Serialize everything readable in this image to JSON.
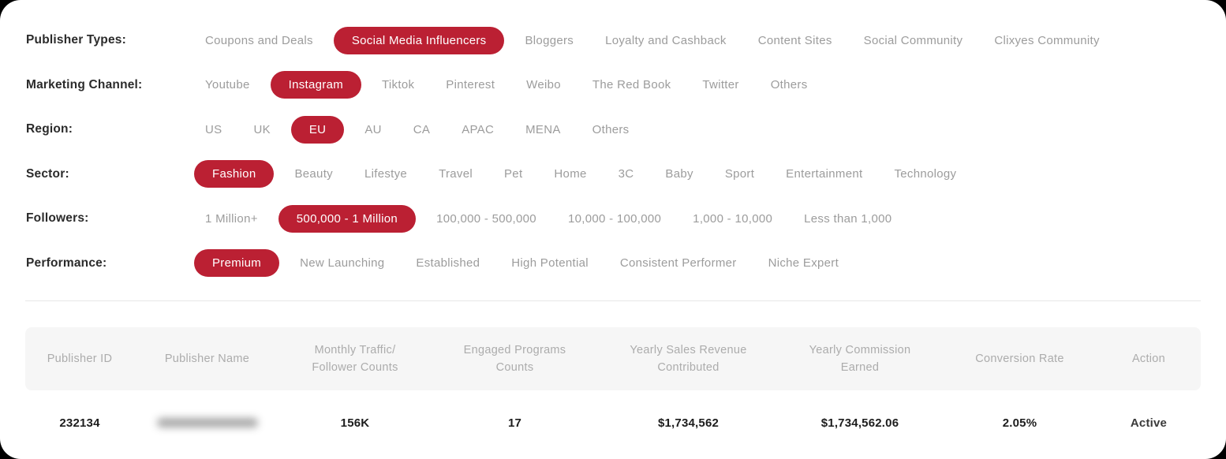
{
  "theme": {
    "accent_red": "#bb2033",
    "option_text": "#9c9c9c",
    "label_text": "#2b2b2b",
    "header_bg": "#f6f6f6"
  },
  "filters": [
    {
      "label": "Publisher Types:",
      "options": [
        {
          "label": "Coupons and Deals",
          "selected": false
        },
        {
          "label": "Social Media Influencers",
          "selected": true
        },
        {
          "label": "Bloggers",
          "selected": false
        },
        {
          "label": "Loyalty and Cashback",
          "selected": false
        },
        {
          "label": "Content Sites",
          "selected": false
        },
        {
          "label": "Social Community",
          "selected": false
        },
        {
          "label": "Clixyes Community",
          "selected": false
        }
      ]
    },
    {
      "label": "Marketing Channel:",
      "options": [
        {
          "label": "Youtube",
          "selected": false
        },
        {
          "label": "Instagram",
          "selected": true
        },
        {
          "label": "Tiktok",
          "selected": false
        },
        {
          "label": "Pinterest",
          "selected": false
        },
        {
          "label": "Weibo",
          "selected": false
        },
        {
          "label": "The Red Book",
          "selected": false
        },
        {
          "label": "Twitter",
          "selected": false
        },
        {
          "label": "Others",
          "selected": false
        }
      ]
    },
    {
      "label": "Region:",
      "options": [
        {
          "label": "US",
          "selected": false
        },
        {
          "label": "UK",
          "selected": false
        },
        {
          "label": "EU",
          "selected": true
        },
        {
          "label": "AU",
          "selected": false
        },
        {
          "label": "CA",
          "selected": false
        },
        {
          "label": "APAC",
          "selected": false
        },
        {
          "label": "MENA",
          "selected": false
        },
        {
          "label": "Others",
          "selected": false
        }
      ]
    },
    {
      "label": "Sector:",
      "options": [
        {
          "label": "Fashion",
          "selected": true
        },
        {
          "label": "Beauty",
          "selected": false
        },
        {
          "label": "Lifestye",
          "selected": false
        },
        {
          "label": "Travel",
          "selected": false
        },
        {
          "label": "Pet",
          "selected": false
        },
        {
          "label": "Home",
          "selected": false
        },
        {
          "label": "3C",
          "selected": false
        },
        {
          "label": "Baby",
          "selected": false
        },
        {
          "label": "Sport",
          "selected": false
        },
        {
          "label": "Entertainment",
          "selected": false
        },
        {
          "label": "Technology",
          "selected": false
        }
      ]
    },
    {
      "label": "Followers:",
      "options": [
        {
          "label": "1 Million+",
          "selected": false
        },
        {
          "label": "500,000 - 1 Million",
          "selected": true
        },
        {
          "label": "100,000 - 500,000",
          "selected": false
        },
        {
          "label": "10,000 - 100,000",
          "selected": false
        },
        {
          "label": "1,000 - 10,000",
          "selected": false
        },
        {
          "label": "Less than 1,000",
          "selected": false
        }
      ]
    },
    {
      "label": "Performance:",
      "options": [
        {
          "label": "Premium",
          "selected": true
        },
        {
          "label": "New Launching",
          "selected": false
        },
        {
          "label": "Established",
          "selected": false
        },
        {
          "label": "High Potential",
          "selected": false
        },
        {
          "label": "Consistent Performer",
          "selected": false
        },
        {
          "label": "Niche Expert",
          "selected": false
        }
      ]
    }
  ],
  "table": {
    "headers": [
      "Publisher ID",
      "Publisher Name",
      "Monthly Traffic/\nFollower Counts",
      "Engaged Programs\nCounts",
      "Yearly Sales Revenue\nContributed",
      "Yearly Commission\nEarned",
      "Conversion Rate",
      "Action"
    ],
    "row": {
      "publisher_id": "232134",
      "publisher_name_blurred": true,
      "monthly_traffic": "156K",
      "engaged_programs": "17",
      "yearly_sales_revenue": "$1,734,562",
      "yearly_commission": "$1,734,562.06",
      "conversion_rate": "2.05%",
      "action": "Active"
    }
  }
}
